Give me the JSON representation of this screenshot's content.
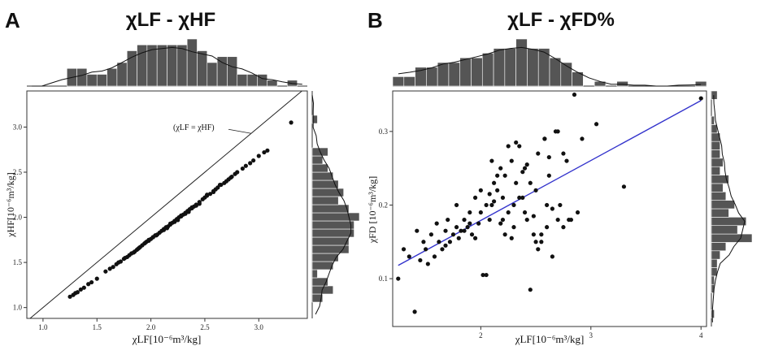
{
  "chart_data": [
    {
      "type": "scatter",
      "panel_label": "A",
      "title": "χLF - χHF",
      "xlabel": "χLF[10⁻⁶m³/kg]",
      "ylabel": "χHF[10⁻⁶m³/kg]",
      "xlim": [
        0.85,
        3.45
      ],
      "ylim": [
        0.88,
        3.4
      ],
      "xticks": [
        1.0,
        1.5,
        2.0,
        2.5,
        3.0
      ],
      "xtick_labels": [
        "1.0",
        "1.5",
        "2.0",
        "2.5",
        "3.0"
      ],
      "yticks": [
        1.0,
        1.5,
        2.0,
        2.5,
        3.0
      ],
      "ytick_labels": [
        "1.0",
        "1.5",
        "2.0",
        "2.5",
        "3.0"
      ],
      "reference_line": {
        "label": "(χLF = χHF)",
        "slope": 1,
        "intercept": 0
      },
      "grid": false,
      "marginal_histograms": true,
      "x": [
        1.25,
        1.28,
        1.3,
        1.32,
        1.35,
        1.38,
        1.42,
        1.45,
        1.5,
        1.58,
        1.62,
        1.65,
        1.68,
        1.7,
        1.72,
        1.75,
        1.78,
        1.8,
        1.82,
        1.85,
        1.87,
        1.89,
        1.9,
        1.92,
        1.94,
        1.96,
        1.98,
        2.0,
        2.02,
        2.04,
        2.06,
        2.08,
        2.1,
        2.12,
        2.14,
        2.16,
        2.18,
        2.2,
        2.22,
        2.24,
        2.26,
        2.28,
        2.3,
        2.32,
        2.34,
        2.36,
        2.38,
        2.4,
        2.42,
        2.45,
        2.48,
        2.5,
        2.52,
        2.55,
        2.58,
        2.6,
        2.62,
        2.65,
        2.68,
        2.7,
        2.72,
        2.75,
        2.78,
        2.8,
        2.85,
        2.88,
        2.92,
        2.95,
        3.0,
        3.05,
        3.08,
        3.3,
        1.95,
        2.05,
        2.15,
        2.25,
        2.35,
        2.45,
        1.88,
        2.02,
        2.18,
        2.28,
        2.38,
        2.52,
        2.64,
        1.76,
        1.84,
        1.98,
        2.12,
        2.22,
        2.32,
        2.42,
        2.58,
        2.74
      ],
      "y": [
        1.12,
        1.14,
        1.16,
        1.17,
        1.2,
        1.22,
        1.26,
        1.28,
        1.32,
        1.4,
        1.43,
        1.45,
        1.48,
        1.5,
        1.51,
        1.54,
        1.56,
        1.58,
        1.6,
        1.62,
        1.64,
        1.66,
        1.67,
        1.69,
        1.71,
        1.73,
        1.74,
        1.76,
        1.78,
        1.8,
        1.81,
        1.83,
        1.85,
        1.87,
        1.89,
        1.9,
        1.92,
        1.94,
        1.96,
        1.98,
        2.0,
        2.01,
        2.03,
        2.05,
        2.07,
        2.09,
        2.1,
        2.12,
        2.14,
        2.17,
        2.2,
        2.22,
        2.24,
        2.26,
        2.29,
        2.31,
        2.33,
        2.36,
        2.38,
        2.4,
        2.42,
        2.45,
        2.48,
        2.5,
        2.54,
        2.57,
        2.6,
        2.63,
        2.68,
        2.72,
        2.74,
        3.05,
        1.72,
        1.8,
        1.88,
        1.97,
        2.06,
        2.15,
        1.65,
        1.78,
        1.93,
        2.02,
        2.11,
        2.25,
        2.36,
        1.55,
        1.61,
        1.75,
        1.86,
        1.95,
        2.04,
        2.13,
        2.28,
        2.44
      ]
    },
    {
      "type": "scatter",
      "panel_label": "B",
      "title": "χLF - χFD%",
      "xlabel": "χLF[10⁻⁶m³/kg]",
      "ylabel": "χFD [10⁻⁶m³/kg]",
      "xlim": [
        1.2,
        4.05
      ],
      "ylim": [
        0.035,
        0.355
      ],
      "xticks": [
        2,
        3,
        4
      ],
      "xtick_labels": [
        "2",
        "3",
        "4"
      ],
      "yticks": [
        0.1,
        0.2,
        0.3
      ],
      "ytick_labels": [
        "0.1",
        "0.2",
        "0.3"
      ],
      "fit_line": {
        "x": [
          1.25,
          4.0
        ],
        "y": [
          0.118,
          0.342
        ],
        "color": "#3333cc"
      },
      "grid": false,
      "marginal_histograms": true,
      "x": [
        1.25,
        1.3,
        1.35,
        1.4,
        1.42,
        1.48,
        1.5,
        1.52,
        1.55,
        1.58,
        1.6,
        1.62,
        1.65,
        1.68,
        1.7,
        1.72,
        1.75,
        1.78,
        1.8,
        1.82,
        1.85,
        1.88,
        1.9,
        1.92,
        1.95,
        1.98,
        2.0,
        2.02,
        2.05,
        2.08,
        2.1,
        2.12,
        2.15,
        2.18,
        2.2,
        2.22,
        2.25,
        2.28,
        2.3,
        2.32,
        2.35,
        2.38,
        2.4,
        2.42,
        2.45,
        2.48,
        2.5,
        2.52,
        2.55,
        2.58,
        2.6,
        2.62,
        2.65,
        2.68,
        2.7,
        2.72,
        2.75,
        2.78,
        2.8,
        2.85,
        2.88,
        2.92,
        3.05,
        3.3,
        4.0,
        1.45,
        1.9,
        2.05,
        2.25,
        2.35,
        2.55,
        2.4,
        2.15,
        1.95,
        2.1,
        2.3,
        2.5,
        2.65,
        2.75,
        2.2,
        2.0,
        1.85,
        2.45,
        2.6,
        2.7,
        2.08,
        2.18,
        2.28,
        2.38,
        2.48,
        2.58,
        1.68,
        1.78,
        2.12,
        2.22,
        2.32,
        2.42,
        2.52,
        2.62,
        2.82
      ],
      "y": [
        0.1,
        0.14,
        0.13,
        0.055,
        0.165,
        0.15,
        0.14,
        0.12,
        0.16,
        0.13,
        0.175,
        0.15,
        0.14,
        0.165,
        0.18,
        0.15,
        0.16,
        0.17,
        0.155,
        0.165,
        0.18,
        0.17,
        0.19,
        0.16,
        0.21,
        0.175,
        0.22,
        0.105,
        0.105,
        0.18,
        0.2,
        0.23,
        0.22,
        0.25,
        0.21,
        0.24,
        0.19,
        0.26,
        0.2,
        0.23,
        0.28,
        0.21,
        0.19,
        0.18,
        0.085,
        0.16,
        0.22,
        0.27,
        0.16,
        0.29,
        0.17,
        0.24,
        0.13,
        0.3,
        0.18,
        0.2,
        0.17,
        0.26,
        0.18,
        0.35,
        0.19,
        0.29,
        0.31,
        0.225,
        0.345,
        0.125,
        0.175,
        0.2,
        0.28,
        0.21,
        0.15,
        0.25,
        0.24,
        0.155,
        0.26,
        0.17,
        0.15,
        0.195,
        0.27,
        0.18,
        0.19,
        0.165,
        0.23,
        0.2,
        0.3,
        0.215,
        0.175,
        0.155,
        0.245,
        0.185,
        0.29,
        0.145,
        0.2,
        0.205,
        0.16,
        0.285,
        0.255,
        0.14,
        0.265,
        0.18
      ]
    }
  ]
}
